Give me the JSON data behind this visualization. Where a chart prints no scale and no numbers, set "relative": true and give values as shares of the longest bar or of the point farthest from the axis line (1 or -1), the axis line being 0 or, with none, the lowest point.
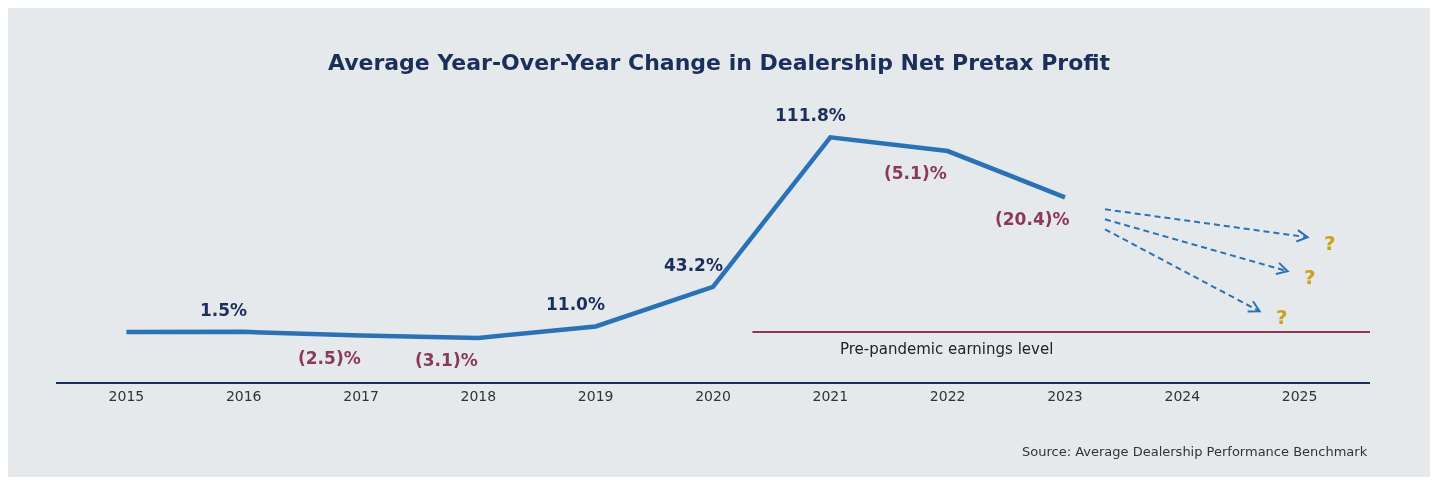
{
  "chart_data": {
    "type": "line",
    "title": "Average Year-Over-Year Change in Dealership Net Pretax Profit",
    "relative": true,
    "categories": [
      "2015",
      "2016",
      "2017",
      "2018",
      "2019",
      "2020",
      "2021",
      "2022",
      "2023",
      "2024",
      "2025"
    ],
    "series": [
      {
        "color": "#2a72b5",
        "values": [
          0.204,
          0.205,
          0.19,
          0.18,
          0.227,
          0.389,
          1,
          0.944,
          0.755,
          null,
          null
        ]
      }
    ],
    "marker": "none",
    "line_style": "solid",
    "grid": false,
    "ref_lines": [
      {
        "axis": "y",
        "value": 0.204,
        "label": "Pre-pandemic earnings level",
        "color": "#8b3a55"
      }
    ],
    "annotations": [
      {
        "text": "1.5%",
        "x": "2016",
        "y": 0.205
      },
      {
        "text": "(2.5)%",
        "x": "2017",
        "y": 0.19
      },
      {
        "text": "(3.1)%",
        "x": "2018",
        "y": 0.18
      },
      {
        "text": "11.0%",
        "x": "2019",
        "y": 0.227
      },
      {
        "text": "43.2%",
        "x": "2020",
        "y": 0.389
      },
      {
        "text": "111.8%",
        "x": "2021",
        "y": 1
      },
      {
        "text": "(5.1)%",
        "x": "2022",
        "y": 0.944
      },
      {
        "text": "(20.4)%",
        "x": "2023",
        "y": 0.755
      },
      "?",
      "?",
      "?",
      "Source: Average Dealership Performance Benchmark"
    ]
  }
}
